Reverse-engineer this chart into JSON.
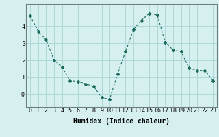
{
  "x": [
    0,
    1,
    2,
    3,
    4,
    5,
    6,
    7,
    8,
    9,
    10,
    11,
    12,
    13,
    14,
    15,
    16,
    17,
    18,
    19,
    20,
    21,
    22,
    23
  ],
  "y": [
    4.6,
    3.7,
    3.2,
    2.0,
    1.6,
    0.8,
    0.75,
    0.6,
    0.45,
    -0.2,
    -0.3,
    1.2,
    2.5,
    3.8,
    4.35,
    4.75,
    4.65,
    3.05,
    2.6,
    2.5,
    1.55,
    1.4,
    1.4,
    0.8
  ],
  "line_color": "#1a6b5e",
  "marker": "D",
  "marker_size": 2,
  "bg_color": "#d6f0f0",
  "grid_color": "#b0d8d8",
  "xlabel": "Humidex (Indice chaleur)",
  "xlabel_fontsize": 7,
  "tick_fontsize": 6,
  "ylim": [
    -0.75,
    5.3
  ],
  "xlim": [
    -0.5,
    23.5
  ],
  "yticks": [
    0,
    1,
    2,
    3,
    4
  ],
  "ytick_labels": [
    "-0",
    "1",
    "2",
    "3",
    "4"
  ],
  "xticks": [
    0,
    1,
    2,
    3,
    4,
    5,
    6,
    7,
    8,
    9,
    10,
    11,
    12,
    13,
    14,
    15,
    16,
    17,
    18,
    19,
    20,
    21,
    22,
    23
  ]
}
